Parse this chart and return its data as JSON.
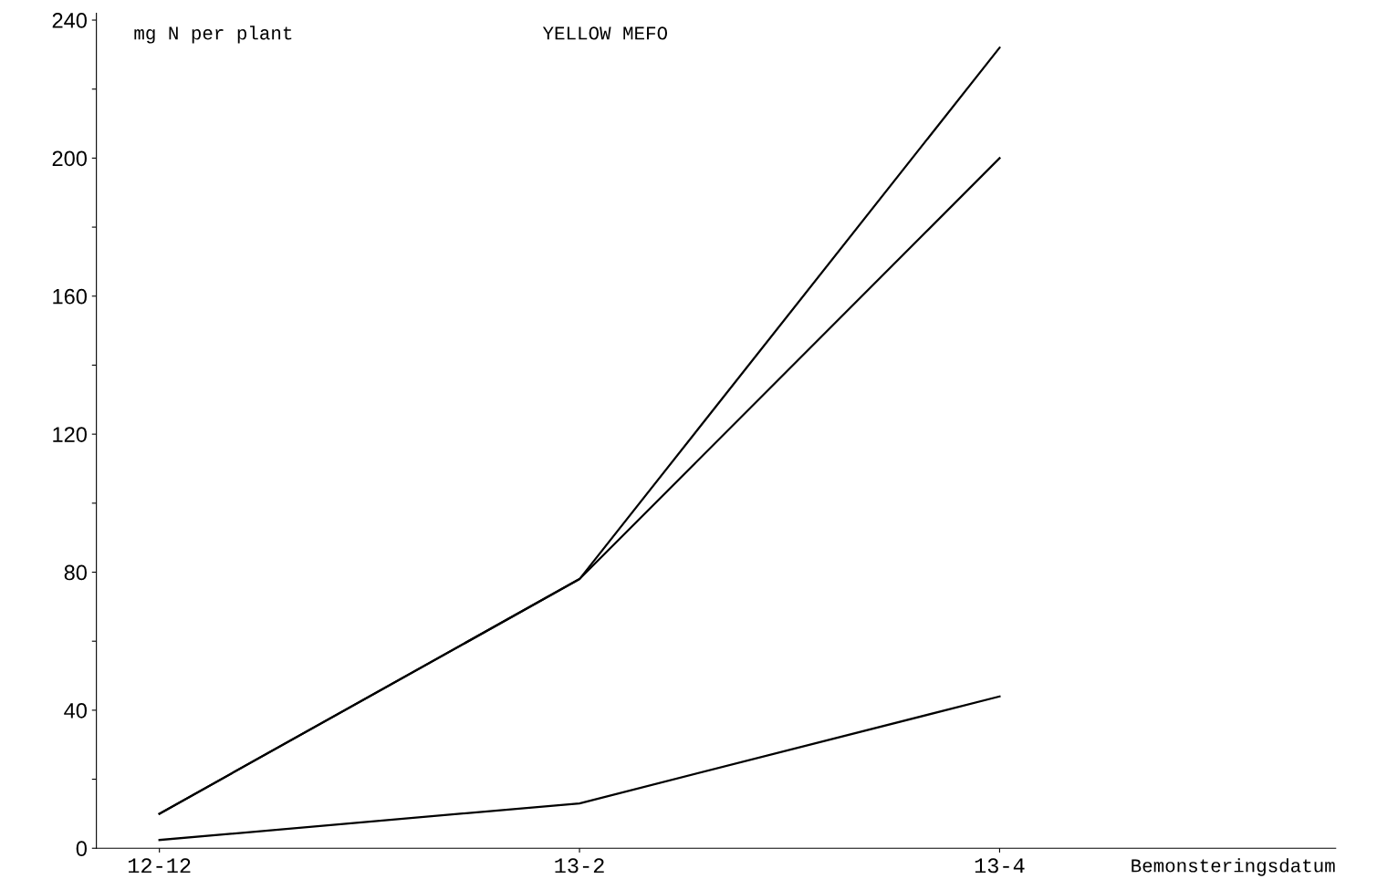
{
  "chart_data": {
    "type": "line",
    "title": "YELLOW MEFO",
    "ylabel": "mg N per plant",
    "xlabel": "Bemonsteringsdatum",
    "categories": [
      "12-12",
      "13-2",
      "13-4"
    ],
    "series": [
      {
        "color": "#000000",
        "values": [
          10,
          78,
          232
        ]
      },
      {
        "color": "#000000",
        "values": [
          10,
          78,
          200
        ]
      },
      {
        "color": "#000000",
        "values": [
          2.4,
          13,
          44
        ]
      }
    ],
    "ylim": [
      0,
      242
    ],
    "yticks": [
      0,
      {
        "value": 20,
        "label": null
      },
      40,
      {
        "value": 60,
        "label": null
      },
      80,
      {
        "value": 100,
        "label": null
      },
      120,
      {
        "value": 140,
        "label": null
      },
      160,
      {
        "value": 180,
        "label": null
      },
      200,
      {
        "value": 220,
        "label": null
      },
      240
    ],
    "grid": false,
    "legend": false,
    "marker": "none",
    "line_style": "solid"
  }
}
